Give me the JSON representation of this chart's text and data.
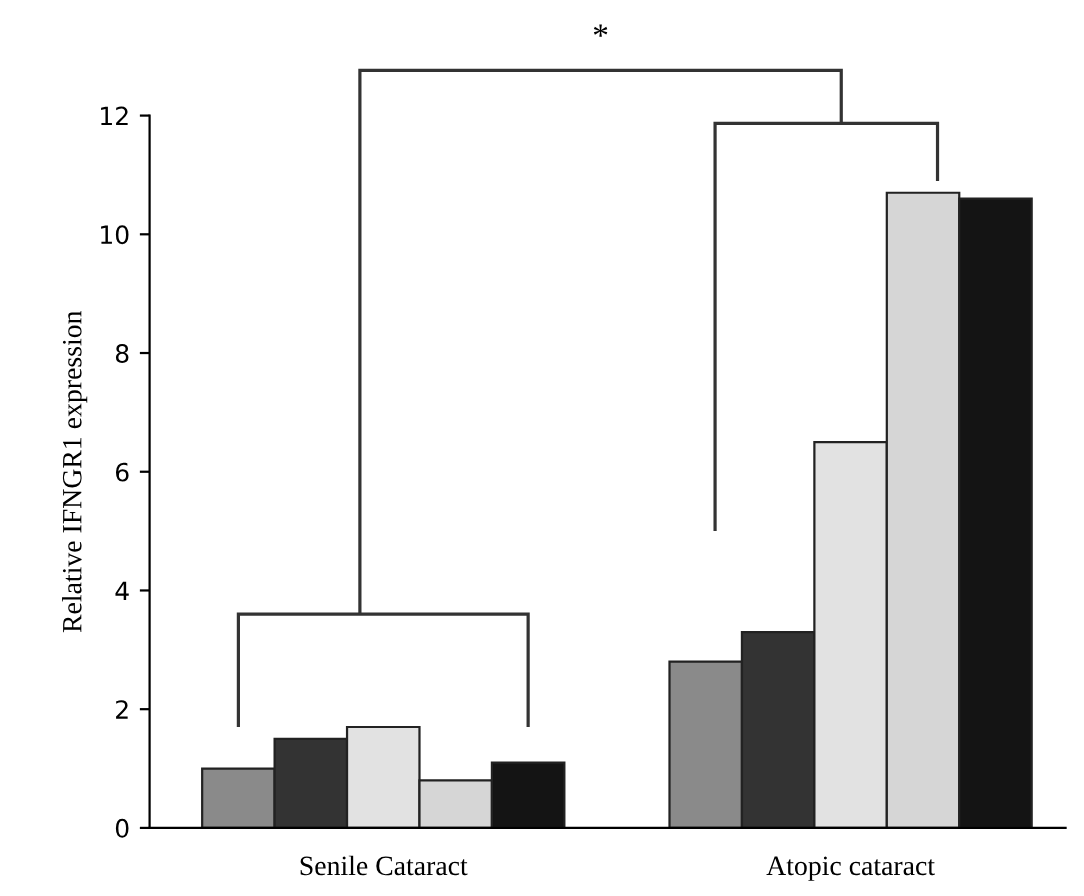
{
  "chart_data": {
    "type": "bar",
    "ylabel": "Relative IFNGR1 expression",
    "categories": [
      "Senile Cataract",
      "Atopic cataract"
    ],
    "series": [
      {
        "color": "#8a8a8a",
        "values": [
          1.0,
          2.8
        ]
      },
      {
        "color": "#333333",
        "values": [
          1.5,
          3.3
        ]
      },
      {
        "color": "#e2e2e2",
        "values": [
          1.7,
          6.5
        ]
      },
      {
        "color": "#d6d6d6",
        "values": [
          0.8,
          10.7
        ]
      },
      {
        "color": "#141414",
        "values": [
          1.1,
          10.6
        ]
      }
    ],
    "ylim": [
      0,
      12
    ],
    "yticks": [
      0,
      2,
      4,
      6,
      8,
      10,
      12
    ],
    "annotations": [
      "*"
    ],
    "grid": false
  }
}
